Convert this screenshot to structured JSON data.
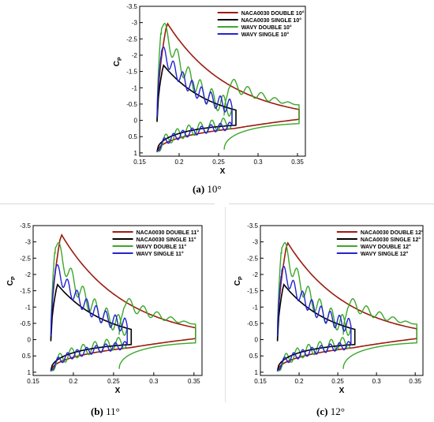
{
  "colors": {
    "naca_double": "#9b1c0f",
    "naca_single": "#000000",
    "wavy_double": "#3aa82a",
    "wavy_single": "#2424d0"
  },
  "chart_data": [
    {
      "type": "line",
      "caption_label": "(a)",
      "caption_value": "10°",
      "xlabel": "X",
      "ylabel": "Cp",
      "xlim": [
        0.15,
        0.36
      ],
      "ylim": [
        1.1,
        -3.5
      ],
      "y_inverted": true,
      "xticks": [
        "0.15",
        "0.2",
        "0.25",
        "0.3",
        "0.35"
      ],
      "yticks": [
        "-3.5",
        "-3",
        "-2.5",
        "-2",
        "-1.5",
        "-1",
        "-0.5",
        "0",
        "0.5",
        "1"
      ],
      "legend": [
        "NACA0030 DOUBLE 10°",
        "NACA0030 SINGLE  10°",
        "WAVY DOUBLE 10°",
        "WAVY SINGLE  10°"
      ],
      "legend_position": "top-right",
      "peak": {
        "naca_double": -3.0,
        "wavy_double": -3.0,
        "naca_single": -1.75,
        "wavy_single": -2.05
      }
    },
    {
      "type": "line",
      "caption_label": "(b)",
      "caption_value": "11°",
      "xlabel": "X",
      "ylabel": "Cp",
      "xlim": [
        0.15,
        0.36
      ],
      "ylim": [
        1.1,
        -3.5
      ],
      "y_inverted": true,
      "xticks": [
        "0.15",
        "0.2",
        "0.25",
        "0.3",
        "0.35"
      ],
      "yticks": [
        "-3.5",
        "-3",
        "-2.5",
        "-2",
        "-1.5",
        "-1",
        "-0.5",
        "0",
        "0.5",
        "1"
      ],
      "legend": [
        "NACA0030 DOUBLE 11°",
        "NACA0030 SINGLE  11°",
        "WAVY DOUBLE 11°",
        "WAVY SINGLE  11°"
      ],
      "legend_position": "top-right",
      "peak": {
        "naca_double": -3.25,
        "wavy_double": -3.0,
        "naca_single": -1.75,
        "wavy_single": -2.1
      }
    },
    {
      "type": "line",
      "caption_label": "(c)",
      "caption_value": "12°",
      "xlabel": "X",
      "ylabel": "Cp",
      "xlim": [
        0.15,
        0.36
      ],
      "ylim": [
        1.1,
        -3.5
      ],
      "y_inverted": true,
      "xticks": [
        "0.15",
        "0.2",
        "0.25",
        "0.3",
        "0.35"
      ],
      "yticks": [
        "-3.5",
        "-3",
        "-2.5",
        "-2",
        "-1.5",
        "-1",
        "-0.5",
        "0",
        "0.5",
        "1"
      ],
      "legend": [
        "NACA0030 DOUBLE 12°",
        "NACA0030 SINGLE  12°",
        "WAVY DOUBLE 12°",
        "WAVY SINGLE  12°"
      ],
      "legend_position": "top-right",
      "peak": {
        "naca_double": -3.0,
        "wavy_double": -3.0,
        "naca_single": -1.75,
        "wavy_single": -2.05
      }
    }
  ]
}
